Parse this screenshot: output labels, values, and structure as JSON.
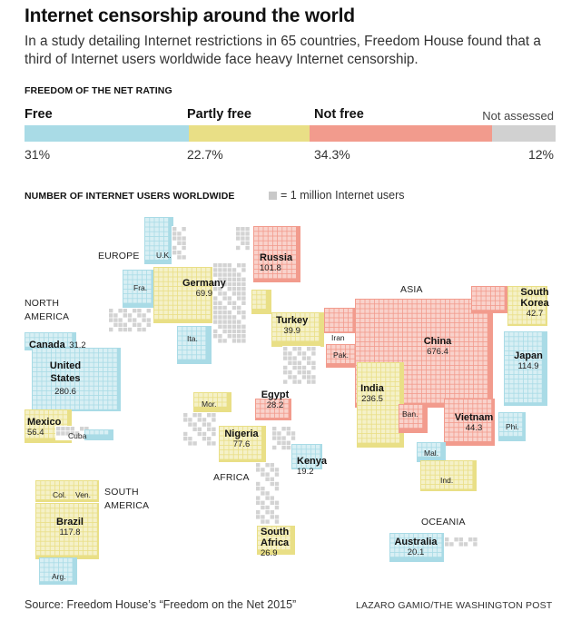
{
  "title": "Internet censorship around the world",
  "subtitle": "In a study detailing Internet restrictions in 65 countries, Freedom House found that a third of Internet users worldwide face heavy Internet censorship.",
  "rating": {
    "heading": "FREEDOM OF THE NET RATING",
    "categories": [
      {
        "label": "Free",
        "percent_label": "31%",
        "share": 0.31,
        "color": "#a9dbe6"
      },
      {
        "label": "Partly free",
        "percent_label": "22.7%",
        "share": 0.227,
        "color": "#e9df86"
      },
      {
        "label": "Not free",
        "percent_label": "34.3%",
        "share": 0.343,
        "color": "#f29b8d"
      },
      {
        "label": "Not assessed",
        "percent_label": "12%",
        "share": 0.12,
        "color": "#d1d1d1"
      }
    ]
  },
  "users": {
    "heading": "NUMBER OF INTERNET USERS WORLDWIDE",
    "legend_text": "= 1 million Internet users"
  },
  "regions": {
    "europe": "EUROPE",
    "north_america": "NORTH AMERICA",
    "asia": "ASIA",
    "africa": "AFRICA",
    "south_america": "SOUTH AMERICA",
    "oceania": "OCEANIA"
  },
  "countries": {
    "russia": {
      "name": "Russia",
      "value": "101.8"
    },
    "germany": {
      "name": "Germany",
      "value": "69.9"
    },
    "turkey": {
      "name": "Turkey",
      "value": "39.9"
    },
    "south_korea": {
      "name": "South Korea",
      "value": "42.7"
    },
    "canada": {
      "name": "Canada",
      "value": "31.2"
    },
    "united_states": {
      "name": "United States",
      "value": "280.6"
    },
    "china": {
      "name": "China",
      "value": "676.4"
    },
    "japan": {
      "name": "Japan",
      "value": "114.9"
    },
    "india": {
      "name": "India",
      "value": "236.5"
    },
    "egypt": {
      "name": "Egypt",
      "value": "28.2"
    },
    "mexico": {
      "name": "Mexico",
      "value": "56.4"
    },
    "nigeria": {
      "name": "Nigeria",
      "value": "77.6"
    },
    "vietnam": {
      "name": "Vietnam",
      "value": "44.3"
    },
    "kenya": {
      "name": "Kenya",
      "value": "19.2"
    },
    "brazil": {
      "name": "Brazil",
      "value": "117.8"
    },
    "south_africa": {
      "name": "South Africa",
      "value": "26.9"
    },
    "australia": {
      "name": "Australia",
      "value": "20.1"
    }
  },
  "abbreviations": {
    "uk": "U.K.",
    "fra": "Fra.",
    "ita": "Ita.",
    "iran": "Iran",
    "pak": "Pak.",
    "mor": "Mor.",
    "cuba": "Cuba",
    "ban": "Ban.",
    "phi": "Phi.",
    "mal": "Mal.",
    "ind": "Ind.",
    "col": "Col.",
    "ven": "Ven.",
    "arg": "Arg."
  },
  "footer": {
    "source": "Source: Freedom House’s “Freedom on the Net 2015”",
    "credit": "LAZARO GAMIO/THE WASHINGTON POST"
  }
}
